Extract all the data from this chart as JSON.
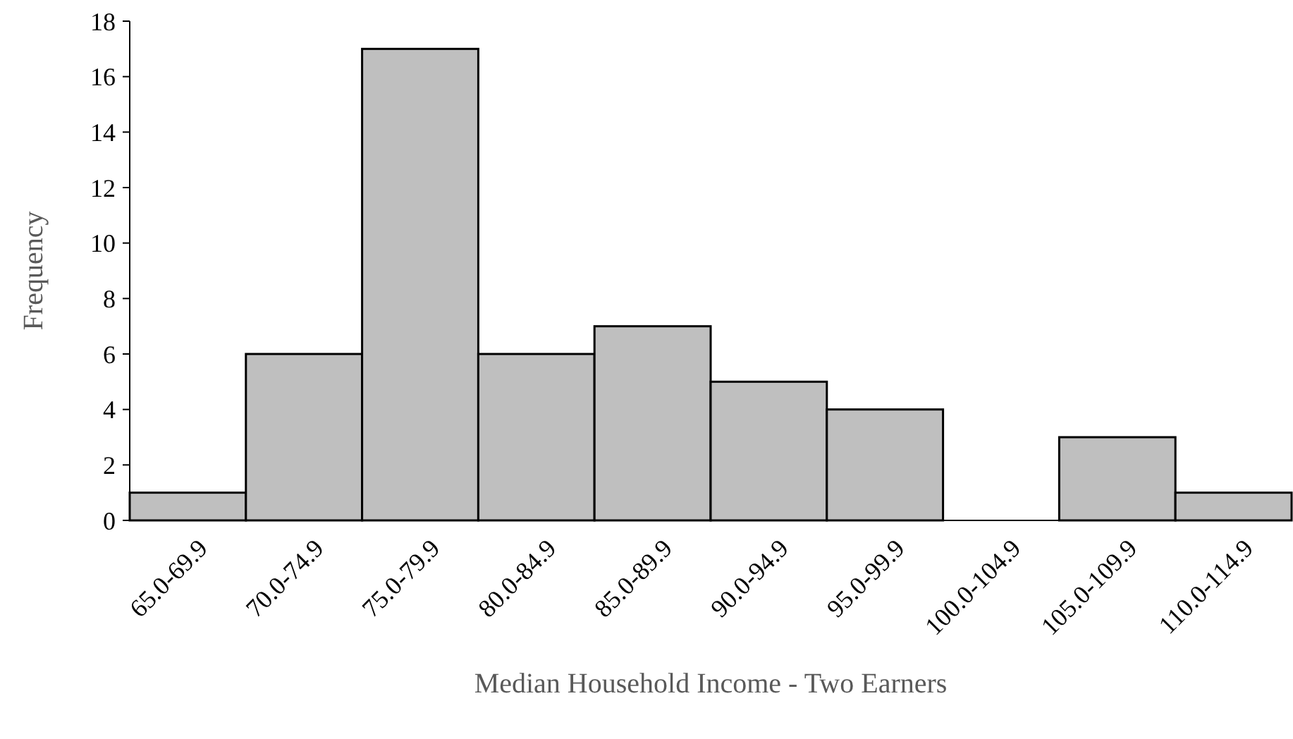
{
  "chart_data": {
    "type": "bar",
    "xlabel": "Median Household Income - Two Earners",
    "ylabel": "Frequency",
    "categories": [
      "65.0-69.9",
      "70.0-74.9",
      "75.0-79.9",
      "80.0-84.9",
      "85.0-89.9",
      "90.0-94.9",
      "95.0-99.9",
      "100.0-104.9",
      "105.0-109.9",
      "110.0-114.9"
    ],
    "values": [
      1,
      6,
      17,
      6,
      7,
      5,
      4,
      0,
      3,
      1
    ],
    "color": "#bfbfbf",
    "ylim": [
      0,
      18
    ],
    "yticks": [
      0,
      2,
      4,
      6,
      8,
      10,
      12,
      14,
      16,
      18
    ],
    "grid": false
  }
}
